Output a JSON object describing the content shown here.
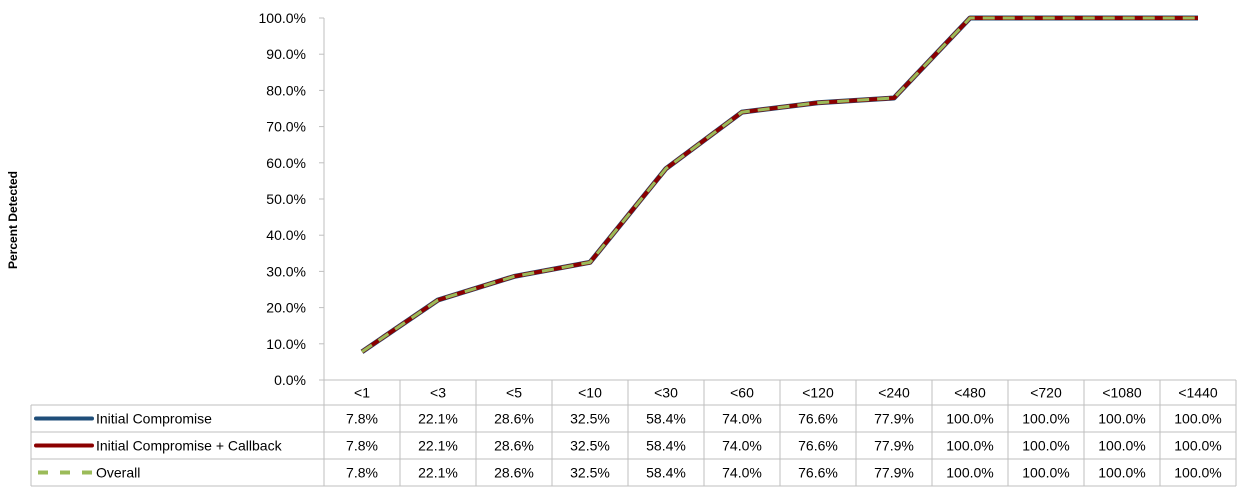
{
  "chart_data": {
    "type": "line",
    "title": "",
    "xlabel": "",
    "ylabel": "Percent Detected",
    "ylim": [
      0,
      100
    ],
    "y_ticks": [
      "0.0%",
      "10.0%",
      "20.0%",
      "30.0%",
      "40.0%",
      "50.0%",
      "60.0%",
      "70.0%",
      "80.0%",
      "90.0%",
      "100.0%"
    ],
    "categories": [
      "<1",
      "<3",
      "<5",
      "<10",
      "<30",
      "<60",
      "<120",
      "<240",
      "<480",
      "<720",
      "<1080",
      "<1440"
    ],
    "grid": false,
    "legend": "data-table",
    "series": [
      {
        "name": "Initial Compromise",
        "color": "#1F4E79",
        "style": "solid",
        "values": [
          7.8,
          22.1,
          28.6,
          32.5,
          58.4,
          74.0,
          76.6,
          77.9,
          100.0,
          100.0,
          100.0,
          100.0
        ],
        "labels": [
          "7.8%",
          "22.1%",
          "28.6%",
          "32.5%",
          "58.4%",
          "74.0%",
          "76.6%",
          "77.9%",
          "100.0%",
          "100.0%",
          "100.0%",
          "100.0%"
        ]
      },
      {
        "name": "Initial Compromise + Callback",
        "color": "#8B0000",
        "style": "solid",
        "values": [
          7.8,
          22.1,
          28.6,
          32.5,
          58.4,
          74.0,
          76.6,
          77.9,
          100.0,
          100.0,
          100.0,
          100.0
        ],
        "labels": [
          "7.8%",
          "22.1%",
          "28.6%",
          "32.5%",
          "58.4%",
          "74.0%",
          "76.6%",
          "77.9%",
          "100.0%",
          "100.0%",
          "100.0%",
          "100.0%"
        ]
      },
      {
        "name": "Overall",
        "color": "#9BBB59",
        "style": "dashed",
        "values": [
          7.8,
          22.1,
          28.6,
          32.5,
          58.4,
          74.0,
          76.6,
          77.9,
          100.0,
          100.0,
          100.0,
          100.0
        ],
        "labels": [
          "7.8%",
          "22.1%",
          "28.6%",
          "32.5%",
          "58.4%",
          "74.0%",
          "76.6%",
          "77.9%",
          "100.0%",
          "100.0%",
          "100.0%",
          "100.0%"
        ]
      }
    ]
  }
}
